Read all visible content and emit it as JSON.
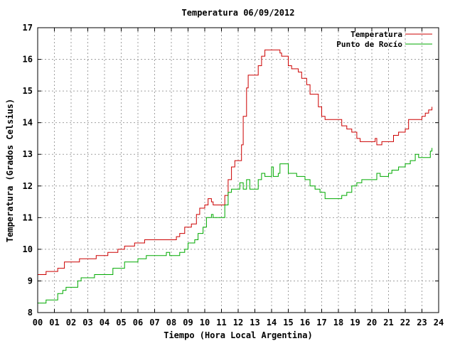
{
  "chart_data": {
    "type": "line",
    "title": "Temperatura 06/09/2012",
    "xlabel": "Tiempo (Hora Local Argentina)",
    "ylabel": "Temperatura (Grados Celsius)",
    "xlim": [
      0,
      24
    ],
    "ylim": [
      8,
      17
    ],
    "x_tick_labels": [
      "00",
      "01",
      "02",
      "03",
      "04",
      "05",
      "06",
      "07",
      "08",
      "09",
      "10",
      "11",
      "12",
      "13",
      "14",
      "15",
      "16",
      "17",
      "18",
      "19",
      "20",
      "21",
      "22",
      "23",
      "24"
    ],
    "y_tick_labels": [
      "8",
      "9",
      "10",
      "11",
      "12",
      "13",
      "14",
      "15",
      "16",
      "17"
    ],
    "grid": true,
    "legend_position": "top-right",
    "series": [
      {
        "name": "Temperatura",
        "color": "#cc0000",
        "points": [
          [
            0.0,
            9.2
          ],
          [
            0.3,
            9.2
          ],
          [
            0.5,
            9.3
          ],
          [
            1.0,
            9.3
          ],
          [
            1.2,
            9.4
          ],
          [
            1.5,
            9.4
          ],
          [
            1.6,
            9.6
          ],
          [
            2.4,
            9.6
          ],
          [
            2.5,
            9.7
          ],
          [
            3.2,
            9.7
          ],
          [
            3.4,
            9.7
          ],
          [
            3.5,
            9.8
          ],
          [
            4.0,
            9.8
          ],
          [
            4.2,
            9.9
          ],
          [
            4.6,
            9.9
          ],
          [
            4.8,
            10.0
          ],
          [
            5.0,
            10.0
          ],
          [
            5.2,
            10.1
          ],
          [
            5.6,
            10.1
          ],
          [
            5.8,
            10.2
          ],
          [
            6.2,
            10.2
          ],
          [
            6.4,
            10.3
          ],
          [
            8.0,
            10.3
          ],
          [
            8.3,
            10.4
          ],
          [
            8.5,
            10.5
          ],
          [
            8.8,
            10.7
          ],
          [
            9.2,
            10.8
          ],
          [
            9.5,
            11.1
          ],
          [
            9.7,
            11.3
          ],
          [
            10.0,
            11.4
          ],
          [
            10.2,
            11.6
          ],
          [
            10.4,
            11.5
          ],
          [
            10.5,
            11.4
          ],
          [
            11.0,
            11.4
          ],
          [
            11.2,
            11.7
          ],
          [
            11.4,
            12.2
          ],
          [
            11.6,
            12.6
          ],
          [
            11.8,
            12.8
          ],
          [
            12.1,
            12.8
          ],
          [
            12.2,
            13.3
          ],
          [
            12.3,
            14.2
          ],
          [
            12.5,
            15.1
          ],
          [
            12.6,
            15.5
          ],
          [
            13.0,
            15.5
          ],
          [
            13.2,
            15.8
          ],
          [
            13.4,
            16.1
          ],
          [
            13.6,
            16.3
          ],
          [
            14.4,
            16.3
          ],
          [
            14.5,
            16.2
          ],
          [
            14.6,
            16.1
          ],
          [
            14.9,
            16.1
          ],
          [
            15.0,
            15.8
          ],
          [
            15.2,
            15.7
          ],
          [
            15.6,
            15.6
          ],
          [
            15.8,
            15.4
          ],
          [
            16.1,
            15.2
          ],
          [
            16.3,
            14.9
          ],
          [
            16.6,
            14.9
          ],
          [
            16.8,
            14.5
          ],
          [
            17.0,
            14.2
          ],
          [
            17.2,
            14.1
          ],
          [
            18.0,
            14.1
          ],
          [
            18.2,
            13.9
          ],
          [
            18.5,
            13.8
          ],
          [
            18.8,
            13.7
          ],
          [
            19.1,
            13.5
          ],
          [
            19.3,
            13.4
          ],
          [
            20.0,
            13.4
          ],
          [
            20.2,
            13.5
          ],
          [
            20.3,
            13.3
          ],
          [
            20.6,
            13.4
          ],
          [
            21.1,
            13.4
          ],
          [
            21.3,
            13.6
          ],
          [
            21.6,
            13.7
          ],
          [
            22.0,
            13.8
          ],
          [
            22.2,
            14.1
          ],
          [
            22.6,
            14.1
          ],
          [
            23.0,
            14.2
          ],
          [
            23.2,
            14.3
          ],
          [
            23.4,
            14.4
          ],
          [
            23.6,
            14.5
          ]
        ]
      },
      {
        "name": "Punto de Rocío",
        "color": "#00aa00",
        "points": [
          [
            0.0,
            8.3
          ],
          [
            0.4,
            8.3
          ],
          [
            0.5,
            8.4
          ],
          [
            1.0,
            8.4
          ],
          [
            1.2,
            8.6
          ],
          [
            1.5,
            8.7
          ],
          [
            1.7,
            8.8
          ],
          [
            2.2,
            8.8
          ],
          [
            2.4,
            9.0
          ],
          [
            2.6,
            9.1
          ],
          [
            3.2,
            9.1
          ],
          [
            3.4,
            9.2
          ],
          [
            4.3,
            9.2
          ],
          [
            4.5,
            9.4
          ],
          [
            5.0,
            9.4
          ],
          [
            5.2,
            9.6
          ],
          [
            5.8,
            9.6
          ],
          [
            6.0,
            9.7
          ],
          [
            6.4,
            9.7
          ],
          [
            6.5,
            9.8
          ],
          [
            7.5,
            9.8
          ],
          [
            7.7,
            9.9
          ],
          [
            7.9,
            9.8
          ],
          [
            8.4,
            9.8
          ],
          [
            8.5,
            9.9
          ],
          [
            8.8,
            10.0
          ],
          [
            9.0,
            10.2
          ],
          [
            9.4,
            10.3
          ],
          [
            9.6,
            10.5
          ],
          [
            9.9,
            10.7
          ],
          [
            10.1,
            11.0
          ],
          [
            10.4,
            11.1
          ],
          [
            10.5,
            11.0
          ],
          [
            11.0,
            11.0
          ],
          [
            11.2,
            11.4
          ],
          [
            11.4,
            11.8
          ],
          [
            11.6,
            11.9
          ],
          [
            12.0,
            11.9
          ],
          [
            12.1,
            12.1
          ],
          [
            12.3,
            11.9
          ],
          [
            12.5,
            12.2
          ],
          [
            12.7,
            11.9
          ],
          [
            13.0,
            11.9
          ],
          [
            13.2,
            12.2
          ],
          [
            13.4,
            12.4
          ],
          [
            13.6,
            12.3
          ],
          [
            14.0,
            12.6
          ],
          [
            14.1,
            12.3
          ],
          [
            14.4,
            12.4
          ],
          [
            14.5,
            12.7
          ],
          [
            14.9,
            12.7
          ],
          [
            15.0,
            12.4
          ],
          [
            15.3,
            12.4
          ],
          [
            15.5,
            12.3
          ],
          [
            16.0,
            12.2
          ],
          [
            16.3,
            12.0
          ],
          [
            16.6,
            11.9
          ],
          [
            16.9,
            11.8
          ],
          [
            17.2,
            11.6
          ],
          [
            18.0,
            11.6
          ],
          [
            18.2,
            11.7
          ],
          [
            18.5,
            11.8
          ],
          [
            18.8,
            12.0
          ],
          [
            19.1,
            12.1
          ],
          [
            19.4,
            12.2
          ],
          [
            20.0,
            12.2
          ],
          [
            20.3,
            12.4
          ],
          [
            20.5,
            12.3
          ],
          [
            21.0,
            12.4
          ],
          [
            21.2,
            12.5
          ],
          [
            21.6,
            12.6
          ],
          [
            22.0,
            12.7
          ],
          [
            22.3,
            12.8
          ],
          [
            22.6,
            13.0
          ],
          [
            22.8,
            12.9
          ],
          [
            23.2,
            12.9
          ],
          [
            23.5,
            13.1
          ],
          [
            23.6,
            13.2
          ]
        ]
      }
    ]
  }
}
